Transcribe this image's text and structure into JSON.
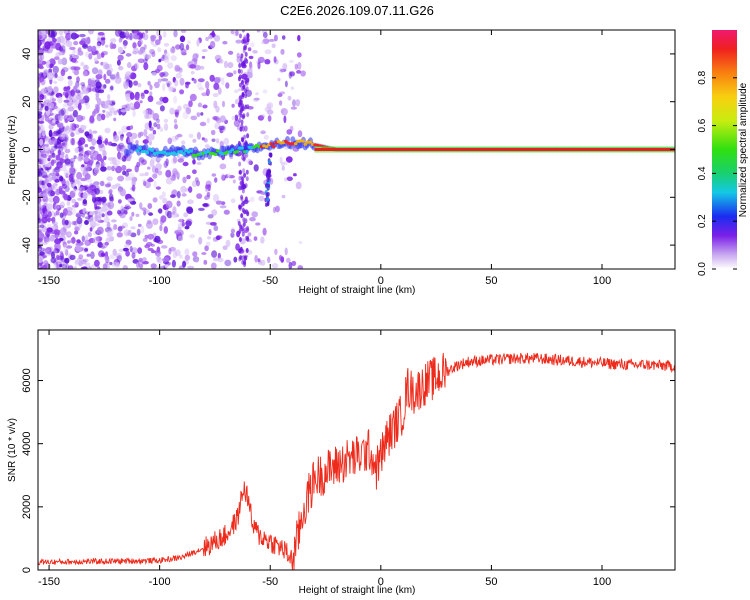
{
  "title": "C2E6.2026.109.07.11.G26",
  "chart_data": [
    {
      "type": "heatmap",
      "name": "spectrogram",
      "title": "C2E6.2026.109.07.11.G26",
      "xlabel": "Height of straight line (km)",
      "ylabel": "Frequency (Hz)",
      "xlim": [
        -155,
        133
      ],
      "ylim": [
        -50,
        50
      ],
      "xticks": [
        -150,
        -100,
        -50,
        0,
        50,
        100
      ],
      "yticks": [
        -40,
        -20,
        0,
        20,
        40
      ],
      "signal_track": {
        "x": [
          -110,
          -100,
          -90,
          -80,
          -70,
          -60,
          -50,
          -40,
          -30,
          -20,
          -10,
          0,
          10,
          50,
          100,
          133
        ],
        "frequency": [
          0,
          -1,
          -1,
          -2,
          -1,
          0,
          2,
          3,
          2,
          0,
          0,
          0,
          0,
          0,
          0,
          0
        ]
      },
      "colorbar": {
        "label": "Normalized spectral amplitude",
        "range": [
          0.0,
          1.0
        ],
        "ticks": [
          "0.0",
          "0.2",
          "0.4",
          "0.6",
          "0.8"
        ]
      }
    },
    {
      "type": "line",
      "name": "snr",
      "xlabel": "Height of straight line (km)",
      "ylabel": "SNR (10 * v/v)",
      "xlim": [
        -155,
        133
      ],
      "ylim": [
        0,
        7600
      ],
      "xticks": [
        -150,
        -100,
        -50,
        0,
        50,
        100
      ],
      "yticks": [
        0,
        2000,
        4000,
        6000
      ],
      "series": [
        {
          "name": "SNR",
          "color": "#ee2a1b",
          "x": [
            -155,
            -140,
            -120,
            -100,
            -90,
            -80,
            -75,
            -70,
            -65,
            -62,
            -60,
            -58,
            -55,
            -50,
            -45,
            -42,
            -40,
            -37,
            -35,
            -30,
            -25,
            -20,
            -15,
            -10,
            -5,
            -2,
            0,
            3,
            5,
            10,
            12,
            15,
            20,
            25,
            30,
            35,
            40,
            50,
            60,
            70,
            80,
            90,
            100,
            110,
            120,
            133
          ],
          "y": [
            250,
            260,
            280,
            300,
            400,
            700,
            900,
            1100,
            1600,
            2600,
            2300,
            1400,
            1100,
            900,
            700,
            500,
            300,
            1200,
            1900,
            2900,
            3100,
            3300,
            3500,
            3600,
            3800,
            3200,
            3600,
            4200,
            4400,
            5000,
            5800,
            5600,
            5900,
            6100,
            6300,
            6500,
            6600,
            6650,
            6700,
            6700,
            6650,
            6600,
            6550,
            6500,
            6500,
            6450
          ]
        }
      ]
    }
  ]
}
